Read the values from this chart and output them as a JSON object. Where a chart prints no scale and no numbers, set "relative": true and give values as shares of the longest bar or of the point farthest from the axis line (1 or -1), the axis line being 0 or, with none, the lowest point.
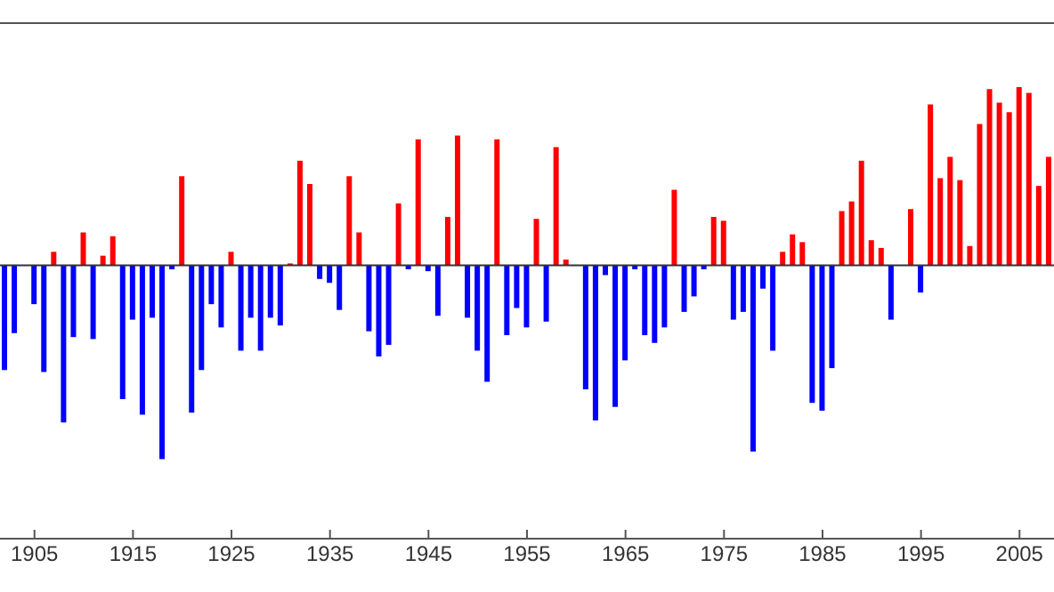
{
  "chart_data": {
    "type": "bar",
    "relative": true,
    "x": [
      1902,
      1903,
      1904,
      1905,
      1906,
      1907,
      1908,
      1909,
      1910,
      1911,
      1912,
      1913,
      1914,
      1915,
      1916,
      1917,
      1918,
      1919,
      1920,
      1921,
      1922,
      1923,
      1924,
      1925,
      1926,
      1927,
      1928,
      1929,
      1930,
      1931,
      1932,
      1933,
      1934,
      1935,
      1936,
      1937,
      1938,
      1939,
      1940,
      1941,
      1942,
      1943,
      1944,
      1945,
      1946,
      1947,
      1948,
      1949,
      1950,
      1951,
      1952,
      1953,
      1954,
      1955,
      1956,
      1957,
      1958,
      1959,
      1960,
      1961,
      1962,
      1963,
      1964,
      1965,
      1966,
      1967,
      1968,
      1969,
      1970,
      1971,
      1972,
      1973,
      1974,
      1975,
      1976,
      1977,
      1978,
      1979,
      1980,
      1981,
      1982,
      1983,
      1984,
      1985,
      1986,
      1987,
      1988,
      1989,
      1990,
      1991,
      1992,
      1993,
      1994,
      1995,
      1996,
      1997,
      1998,
      1999,
      2000,
      2001,
      2002,
      2003,
      2004,
      2005,
      2006,
      2007,
      2008
    ],
    "values": [
      -0.54,
      -0.35,
      0,
      -0.2,
      -0.55,
      0.07,
      -0.81,
      -0.37,
      0.17,
      -0.38,
      0.05,
      0.15,
      -0.69,
      -0.28,
      -0.77,
      -0.27,
      -1,
      -0.02,
      0.46,
      -0.76,
      -0.54,
      -0.2,
      -0.32,
      0.07,
      -0.44,
      -0.27,
      -0.44,
      -0.27,
      -0.31,
      0.01,
      0.54,
      0.42,
      -0.07,
      -0.09,
      -0.23,
      0.46,
      0.17,
      -0.34,
      -0.47,
      -0.41,
      0.32,
      -0.02,
      0.65,
      -0.03,
      -0.26,
      0.25,
      0.67,
      -0.27,
      -0.44,
      -0.6,
      0.65,
      -0.36,
      -0.22,
      -0.32,
      0.24,
      -0.29,
      0.61,
      0.03,
      0,
      -0.64,
      -0.8,
      -0.05,
      -0.73,
      -0.49,
      -0.02,
      -0.36,
      -0.4,
      -0.32,
      0.39,
      -0.24,
      -0.16,
      -0.02,
      0.25,
      0.23,
      -0.28,
      -0.24,
      -0.96,
      -0.12,
      -0.44,
      0.07,
      0.16,
      0.12,
      -0.71,
      -0.75,
      -0.53,
      0.28,
      0.33,
      0.54,
      0.13,
      0.09,
      -0.28,
      0,
      0.29,
      -0.14,
      0.83,
      0.45,
      0.56,
      0.44,
      0.1,
      0.73,
      0.91,
      0.84,
      0.79,
      0.92,
      0.89,
      0.41,
      0.56
    ],
    "colors": [
      "#0000ff",
      "#0000ff",
      "#0000ff",
      "#0000ff",
      "#0000ff",
      "#ff0000",
      "#0000ff",
      "#0000ff",
      "#ff0000",
      "#0000ff",
      "#ff0000",
      "#ff0000",
      "#0000ff",
      "#0000ff",
      "#0000ff",
      "#0000ff",
      "#0000ff",
      "#0000ff",
      "#ff0000",
      "#0000ff",
      "#0000ff",
      "#0000ff",
      "#0000ff",
      "#ff0000",
      "#0000ff",
      "#0000ff",
      "#0000ff",
      "#0000ff",
      "#0000ff",
      "#ff0000",
      "#ff0000",
      "#ff0000",
      "#0000ff",
      "#0000ff",
      "#0000ff",
      "#ff0000",
      "#ff0000",
      "#0000ff",
      "#0000ff",
      "#0000ff",
      "#ff0000",
      "#0000ff",
      "#ff0000",
      "#0000ff",
      "#0000ff",
      "#ff0000",
      "#ff0000",
      "#0000ff",
      "#0000ff",
      "#0000ff",
      "#ff0000",
      "#0000ff",
      "#0000ff",
      "#0000ff",
      "#ff0000",
      "#0000ff",
      "#ff0000",
      "#ff0000",
      "#0000ff",
      "#0000ff",
      "#0000ff",
      "#0000ff",
      "#0000ff",
      "#0000ff",
      "#0000ff",
      "#0000ff",
      "#0000ff",
      "#0000ff",
      "#ff0000",
      "#0000ff",
      "#0000ff",
      "#0000ff",
      "#ff0000",
      "#ff0000",
      "#0000ff",
      "#0000ff",
      "#0000ff",
      "#0000ff",
      "#0000ff",
      "#ff0000",
      "#ff0000",
      "#ff0000",
      "#0000ff",
      "#0000ff",
      "#0000ff",
      "#ff0000",
      "#ff0000",
      "#ff0000",
      "#ff0000",
      "#ff0000",
      "#0000ff",
      "#0000ff",
      "#ff0000",
      "#0000ff",
      "#ff0000",
      "#ff0000",
      "#ff0000",
      "#ff0000",
      "#ff0000",
      "#ff0000",
      "#ff0000",
      "#ff0000",
      "#ff0000",
      "#ff0000",
      "#ff0000",
      "#ff0000",
      "#ff0000"
    ],
    "xlim": [
      1901.5,
      2008.5
    ],
    "xticks": [
      1905,
      1915,
      1925,
      1935,
      1945,
      1955,
      1965,
      1975,
      1985,
      1995,
      2005
    ],
    "grid": false,
    "legend": false
  }
}
